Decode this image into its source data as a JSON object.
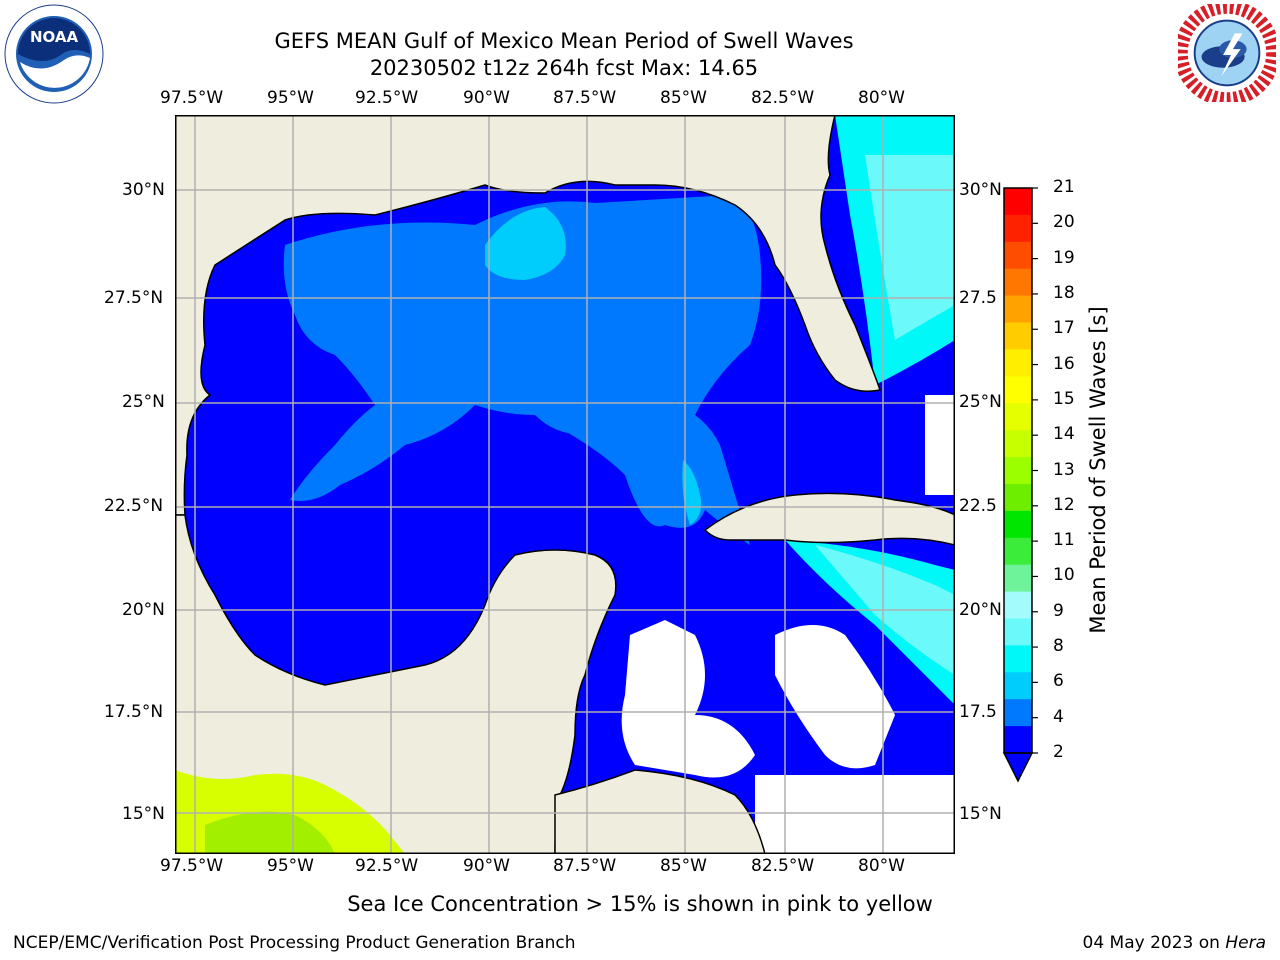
{
  "title": {
    "line1": "GEFS MEAN Gulf of Mexico Mean Period of Swell Waves",
    "line2": "20230502 t12z 264h fcst   Max: 14.65"
  },
  "logos": {
    "left": {
      "icon": "noaa-logo",
      "text": "NOAA",
      "ring_text": "NATIONAL OCEANIC AND ATMOSPHERIC ADMINISTRATION · U.S. DEPARTMENT OF COMMERCE"
    },
    "right": {
      "icon": "nws-logo",
      "ring_text": "NATIONAL WEATHER SERVICE"
    }
  },
  "map": {
    "lon_ticks": [
      "97.5°W",
      "95°W",
      "92.5°W",
      "90°W",
      "87.5°W",
      "85°W",
      "82.5°W",
      "80°W"
    ],
    "lat_ticks_left": [
      "30°N",
      "27.5°N",
      "25°N",
      "22.5°N",
      "20°N",
      "17.5°N",
      "15°N"
    ],
    "lat_ticks_right": [
      "30°N",
      "27.5",
      "25°N",
      "22.5",
      "20°N",
      "17.5",
      "15°N"
    ],
    "extent": {
      "lon": [
        -98,
        -79
      ],
      "lat": [
        14,
        32
      ]
    },
    "colors": {
      "land": "#efedde",
      "coast": "#000000",
      "grid": "#b0b0b0"
    }
  },
  "colorbar": {
    "title": "Mean Period of Swell Waves [s]",
    "labels": [
      "21",
      "20",
      "19",
      "18",
      "17",
      "16",
      "15",
      "14",
      "13",
      "12",
      "11",
      "10",
      "9",
      "8",
      "6",
      "4",
      "2"
    ],
    "colors": [
      "#ff0000",
      "#ff2200",
      "#ff4d00",
      "#ff7700",
      "#ffa200",
      "#ffcc00",
      "#ffee00",
      "#ffff00",
      "#e5ff00",
      "#c8ff00",
      "#9cff00",
      "#6dee00",
      "#00e600",
      "#3bec3b",
      "#6ef29a",
      "#a4fbfb",
      "#6cf9f9",
      "#00f8f8",
      "#00cdfc",
      "#0079fe",
      "#0000fe"
    ],
    "extend": "min"
  },
  "subtitle": "Sea Ice Concentration > 15% is shown in pink to yellow",
  "footer": {
    "left": "NCEP/EMC/Verification Post Processing Product Generation Branch",
    "right_date": "04 May 2023 on ",
    "right_machine": "Hera"
  }
}
